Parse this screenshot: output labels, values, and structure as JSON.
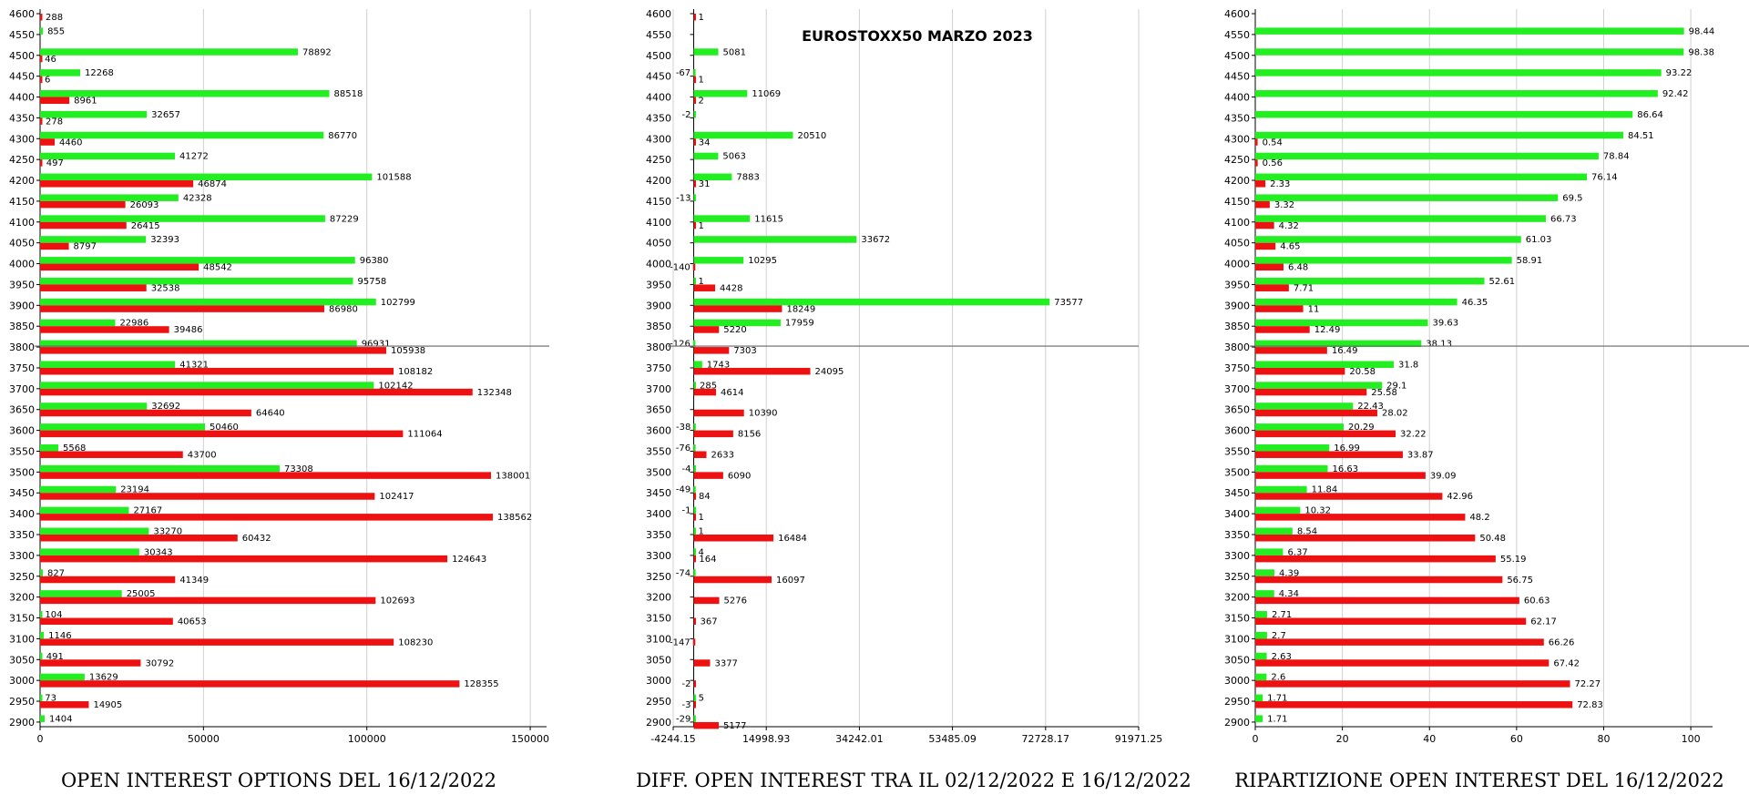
{
  "chart_title": "EUROSTOXX50 MARZO 2023",
  "colors": {
    "green": "#22ee22",
    "red": "#ee1111",
    "grid": "#d0d0d0",
    "refline": "#666666"
  },
  "chart_data": [
    {
      "type": "bar",
      "orientation": "horizontal",
      "caption": "OPEN INTEREST OPTIONS DEL 16/12/2022",
      "categories": [
        "4600",
        "4550",
        "4500",
        "4450",
        "4400",
        "4350",
        "4300",
        "4250",
        "4200",
        "4150",
        "4100",
        "4050",
        "4000",
        "3950",
        "3900",
        "3850",
        "3800",
        "3750",
        "3700",
        "3650",
        "3600",
        "3550",
        "3500",
        "3450",
        "3400",
        "3350",
        "3300",
        "3250",
        "3200",
        "3150",
        "3100",
        "3050",
        "3000",
        "2950",
        "2900"
      ],
      "series": [
        {
          "color": "green",
          "values": [
            null,
            855,
            78892,
            12268,
            88518,
            32657,
            86770,
            41272,
            101588,
            42328,
            87229,
            32393,
            96380,
            95758,
            102799,
            22986,
            96931,
            41321,
            102142,
            32692,
            50460,
            5568,
            73308,
            23194,
            27167,
            33270,
            30343,
            827,
            25005,
            104,
            1146,
            491,
            13629,
            73,
            1404
          ]
        },
        {
          "color": "red",
          "values": [
            288,
            null,
            46,
            6,
            8961,
            278,
            4460,
            497,
            46874,
            26093,
            26415,
            8797,
            48542,
            32538,
            86980,
            39486,
            105938,
            108182,
            132348,
            64640,
            111064,
            43700,
            138001,
            102417,
            138562,
            60432,
            124643,
            41349,
            102693,
            40653,
            108230,
            30792,
            128355,
            14905,
            null
          ]
        }
      ],
      "xlim": [
        0,
        155000
      ],
      "xticks": [
        0,
        50000,
        100000,
        150000
      ],
      "xtick_labels": [
        "0",
        "50000",
        "100000",
        "150000"
      ],
      "reference_line_at": "3800"
    },
    {
      "type": "bar",
      "orientation": "horizontal",
      "caption": "DIFF. OPEN INTEREST TRA IL 02/12/2022 E 16/12/2022",
      "title": "EUROSTOXX50 MARZO 2023",
      "categories": [
        "4600",
        "4550",
        "4500",
        "4450",
        "4400",
        "4350",
        "4300",
        "4250",
        "4200",
        "4150",
        "4100",
        "4050",
        "4000",
        "3950",
        "3900",
        "3850",
        "3800",
        "3750",
        "3700",
        "3650",
        "3600",
        "3550",
        "3500",
        "3450",
        "3400",
        "3350",
        "3300",
        "3250",
        "3200",
        "3150",
        "3100",
        "3050",
        "3000",
        "2950",
        "2900"
      ],
      "series": [
        {
          "color": "green",
          "values": [
            null,
            null,
            5081,
            -67,
            11069,
            -2,
            20510,
            5063,
            7883,
            -13,
            11615,
            33672,
            10295,
            1,
            73577,
            17959,
            -126,
            1743,
            285,
            null,
            -38,
            -76,
            -4,
            -49,
            -1,
            1,
            4,
            -74,
            null,
            null,
            null,
            null,
            null,
            5,
            -29
          ]
        },
        {
          "color": "red",
          "values": [
            1,
            null,
            null,
            1,
            2,
            null,
            34,
            null,
            31,
            null,
            1,
            null,
            -140,
            4428,
            18249,
            5220,
            7303,
            24095,
            4614,
            10390,
            8156,
            2633,
            6090,
            84,
            1,
            16484,
            164,
            16097,
            5276,
            367,
            -147,
            3377,
            -2,
            -3,
            5177
          ]
        }
      ],
      "xlim": [
        -4244.15,
        91971.25
      ],
      "xticks": [
        -4244.15,
        14998.93,
        34242.01,
        53485.09,
        72728.17,
        91971.25
      ],
      "xtick_labels": [
        "-4244.15",
        "14998.93",
        "34242.01",
        "53485.09",
        "72728.17",
        "91971.25"
      ],
      "reference_line_at": "3800"
    },
    {
      "type": "bar",
      "orientation": "horizontal",
      "caption": "RIPARTIZIONE OPEN INTEREST DEL 16/12/2022",
      "categories": [
        "4600",
        "4550",
        "4500",
        "4450",
        "4400",
        "4350",
        "4300",
        "4250",
        "4200",
        "4150",
        "4100",
        "4050",
        "4000",
        "3950",
        "3900",
        "3850",
        "3800",
        "3750",
        "3700",
        "3650",
        "3600",
        "3550",
        "3500",
        "3450",
        "3400",
        "3350",
        "3300",
        "3250",
        "3200",
        "3150",
        "3100",
        "3050",
        "3000",
        "2950",
        "2900"
      ],
      "series": [
        {
          "color": "green",
          "values": [
            null,
            98.44,
            98.38,
            93.22,
            92.42,
            86.64,
            84.51,
            78.84,
            76.14,
            69.5,
            66.73,
            61.03,
            58.91,
            52.61,
            46.35,
            39.63,
            38.13,
            31.8,
            29.1,
            22.43,
            20.29,
            16.99,
            16.63,
            11.84,
            10.32,
            8.54,
            6.37,
            4.39,
            4.34,
            2.71,
            2.7,
            2.63,
            2.6,
            1.71,
            1.71
          ]
        },
        {
          "color": "red",
          "values": [
            null,
            null,
            null,
            null,
            null,
            null,
            0.54,
            0.56,
            2.33,
            3.32,
            4.32,
            4.65,
            6.48,
            7.71,
            11,
            12.49,
            16.49,
            20.58,
            25.58,
            28.02,
            32.22,
            33.87,
            39.09,
            42.96,
            48.2,
            50.48,
            55.19,
            56.75,
            60.63,
            62.17,
            66.26,
            67.42,
            72.27,
            72.83,
            null
          ]
        }
      ],
      "xlim": [
        0,
        105
      ],
      "xticks": [
        0,
        20,
        40,
        60,
        80,
        100
      ],
      "xtick_labels": [
        "0",
        "20",
        "40",
        "60",
        "80",
        "100"
      ],
      "reference_line_at": "3800"
    }
  ]
}
